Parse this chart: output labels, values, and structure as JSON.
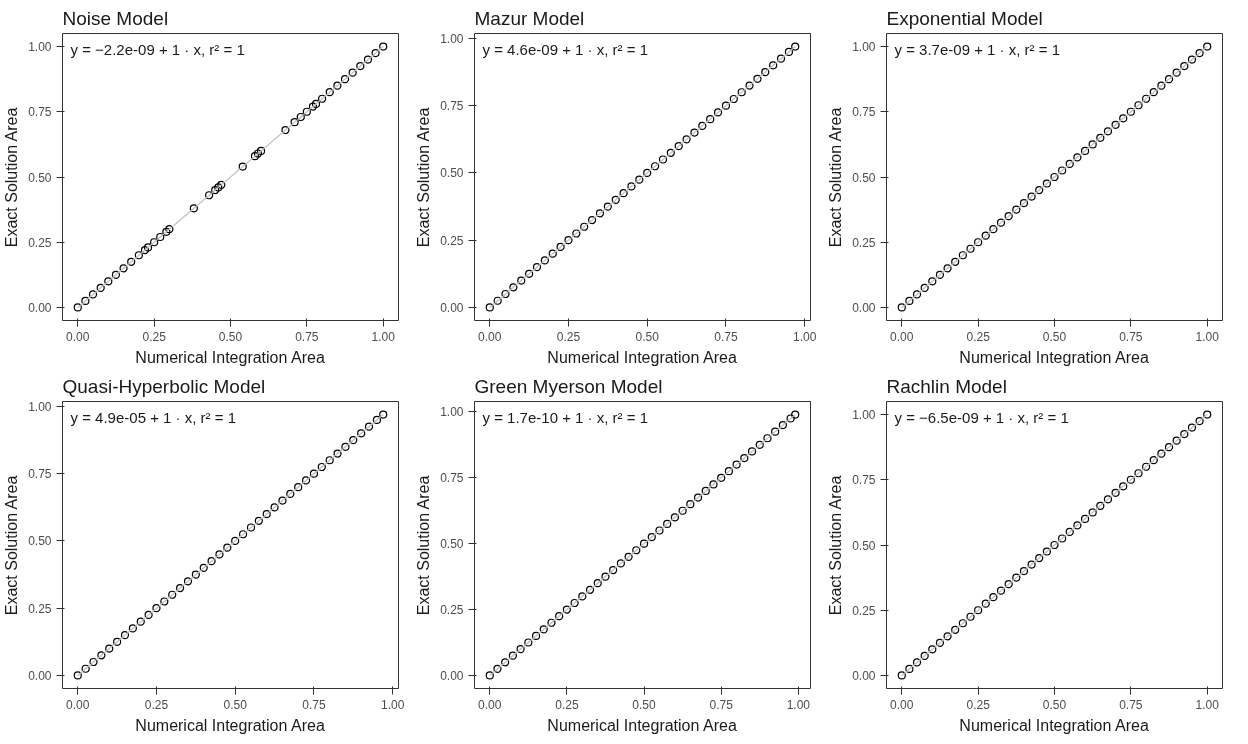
{
  "chart_data": [
    {
      "type": "scatter",
      "title": "Noise Model",
      "xlabel": "Numerical Integration Area",
      "ylabel": "Exact Solution Area",
      "annotations": [
        "y = −2.2e-09 + 1 · x,  r² = 1"
      ],
      "grid": false,
      "xlim": [
        -0.05,
        1.05
      ],
      "ylim": [
        -0.05,
        1.05
      ],
      "xticks": [
        {
          "value": 0,
          "label": "0.00"
        },
        {
          "value": 0.25,
          "label": "0.25"
        },
        {
          "value": 0.5,
          "label": "0.50"
        },
        {
          "value": 0.75,
          "label": "0.75"
        },
        {
          "value": 1,
          "label": "1.00"
        }
      ],
      "yticks": [
        {
          "value": 0,
          "label": "0.00"
        },
        {
          "value": 0.25,
          "label": "0.25"
        },
        {
          "value": 0.5,
          "label": "0.50"
        },
        {
          "value": 0.75,
          "label": "0.75"
        },
        {
          "value": 1,
          "label": "1.00"
        }
      ],
      "series": [
        {
          "marker": "circle",
          "color": "#000000",
          "x": [
            0,
            0.025,
            0.05,
            0.075,
            0.1,
            0.125,
            0.15,
            0.175,
            0.2,
            0.22,
            0.23,
            0.25,
            0.27,
            0.29,
            0.3,
            0.38,
            0.43,
            0.45,
            0.46,
            0.47,
            0.54,
            0.58,
            0.59,
            0.6,
            0.68,
            0.71,
            0.73,
            0.75,
            0.77,
            0.78,
            0.8,
            0.825,
            0.85,
            0.875,
            0.9,
            0.925,
            0.95,
            0.975,
            1.0
          ],
          "values": [
            0,
            0.025,
            0.05,
            0.075,
            0.1,
            0.125,
            0.15,
            0.175,
            0.2,
            0.22,
            0.23,
            0.25,
            0.27,
            0.29,
            0.3,
            0.38,
            0.43,
            0.45,
            0.46,
            0.47,
            0.54,
            0.58,
            0.59,
            0.6,
            0.68,
            0.71,
            0.73,
            0.75,
            0.77,
            0.78,
            0.8,
            0.825,
            0.85,
            0.875,
            0.9,
            0.925,
            0.95,
            0.975,
            1.0
          ]
        },
        {
          "type": "line",
          "marker": "none",
          "color": "#bebebe",
          "x": [
            0,
            1
          ],
          "values": [
            0,
            1
          ]
        }
      ]
    },
    {
      "type": "scatter",
      "title": "Mazur Model",
      "xlabel": "Numerical Integration Area",
      "ylabel": "Exact Solution Area",
      "annotations": [
        "y = 4.6e-09 + 1 · x,  r² = 1"
      ],
      "grid": false,
      "xlim": [
        -0.0485,
        1.0185
      ],
      "ylim": [
        -0.0485,
        1.0185
      ],
      "xticks": [
        {
          "value": 0,
          "label": "0.00"
        },
        {
          "value": 0.25,
          "label": "0.25"
        },
        {
          "value": 0.5,
          "label": "0.50"
        },
        {
          "value": 0.75,
          "label": "0.75"
        },
        {
          "value": 1,
          "label": "1.00"
        }
      ],
      "yticks": [
        {
          "value": 0,
          "label": "0.00"
        },
        {
          "value": 0.25,
          "label": "0.25"
        },
        {
          "value": 0.5,
          "label": "0.50"
        },
        {
          "value": 0.75,
          "label": "0.75"
        },
        {
          "value": 1,
          "label": "1.00"
        }
      ],
      "series": [
        {
          "marker": "circle",
          "color": "#000000",
          "x": [
            0,
            0.025,
            0.05,
            0.075,
            0.1,
            0.125,
            0.15,
            0.175,
            0.2,
            0.225,
            0.25,
            0.275,
            0.3,
            0.325,
            0.35,
            0.375,
            0.4,
            0.425,
            0.45,
            0.475,
            0.5,
            0.525,
            0.55,
            0.575,
            0.6,
            0.625,
            0.65,
            0.675,
            0.7,
            0.725,
            0.75,
            0.775,
            0.8,
            0.825,
            0.85,
            0.875,
            0.9,
            0.925,
            0.95,
            0.97
          ],
          "values": [
            0,
            0.025,
            0.05,
            0.075,
            0.1,
            0.125,
            0.15,
            0.175,
            0.2,
            0.225,
            0.25,
            0.275,
            0.3,
            0.325,
            0.35,
            0.375,
            0.4,
            0.425,
            0.45,
            0.475,
            0.5,
            0.525,
            0.55,
            0.575,
            0.6,
            0.625,
            0.65,
            0.675,
            0.7,
            0.725,
            0.75,
            0.775,
            0.8,
            0.825,
            0.85,
            0.875,
            0.9,
            0.925,
            0.95,
            0.97
          ]
        },
        {
          "type": "line",
          "marker": "none",
          "color": "#bebebe",
          "x": [
            0,
            0.97
          ],
          "values": [
            0,
            0.97
          ]
        }
      ]
    },
    {
      "type": "scatter",
      "title": "Exponential Model",
      "xlabel": "Numerical Integration Area",
      "ylabel": "Exact Solution Area",
      "annotations": [
        "y = 3.7e-09 + 1 · x,  r² = 1"
      ],
      "grid": false,
      "xlim": [
        -0.05,
        1.05
      ],
      "ylim": [
        -0.05,
        1.05
      ],
      "xticks": [
        {
          "value": 0,
          "label": "0.00"
        },
        {
          "value": 0.25,
          "label": "0.25"
        },
        {
          "value": 0.5,
          "label": "0.50"
        },
        {
          "value": 0.75,
          "label": "0.75"
        },
        {
          "value": 1,
          "label": "1.00"
        }
      ],
      "yticks": [
        {
          "value": 0,
          "label": "0.00"
        },
        {
          "value": 0.25,
          "label": "0.25"
        },
        {
          "value": 0.5,
          "label": "0.50"
        },
        {
          "value": 0.75,
          "label": "0.75"
        },
        {
          "value": 1,
          "label": "1.00"
        }
      ],
      "series": [
        {
          "marker": "circle",
          "color": "#000000",
          "x": [
            0,
            0.025,
            0.05,
            0.075,
            0.1,
            0.125,
            0.15,
            0.175,
            0.2,
            0.225,
            0.25,
            0.275,
            0.3,
            0.325,
            0.35,
            0.375,
            0.4,
            0.425,
            0.45,
            0.475,
            0.5,
            0.525,
            0.55,
            0.575,
            0.6,
            0.625,
            0.65,
            0.675,
            0.7,
            0.725,
            0.75,
            0.775,
            0.8,
            0.825,
            0.85,
            0.875,
            0.9,
            0.925,
            0.95,
            0.975,
            1.0
          ],
          "values": [
            0,
            0.025,
            0.05,
            0.075,
            0.1,
            0.125,
            0.15,
            0.175,
            0.2,
            0.225,
            0.25,
            0.275,
            0.3,
            0.325,
            0.35,
            0.375,
            0.4,
            0.425,
            0.45,
            0.475,
            0.5,
            0.525,
            0.55,
            0.575,
            0.6,
            0.625,
            0.65,
            0.675,
            0.7,
            0.725,
            0.75,
            0.775,
            0.8,
            0.825,
            0.85,
            0.875,
            0.9,
            0.925,
            0.95,
            0.975,
            1.0
          ]
        },
        {
          "type": "line",
          "marker": "none",
          "color": "#bebebe",
          "x": [
            0,
            1
          ],
          "values": [
            0,
            1
          ]
        }
      ]
    },
    {
      "type": "scatter",
      "title": "Quasi-Hyperbolic Model",
      "xlabel": "Numerical Integration Area",
      "ylabel": "Exact Solution Area",
      "annotations": [
        "y = 4.9e-05 + 1 · x,  r² = 1"
      ],
      "grid": false,
      "xlim": [
        -0.0485,
        1.0185
      ],
      "ylim": [
        -0.0485,
        1.0185
      ],
      "xticks": [
        {
          "value": 0,
          "label": "0.00"
        },
        {
          "value": 0.25,
          "label": "0.25"
        },
        {
          "value": 0.5,
          "label": "0.50"
        },
        {
          "value": 0.75,
          "label": "0.75"
        },
        {
          "value": 1,
          "label": "1.00"
        }
      ],
      "yticks": [
        {
          "value": 0,
          "label": "0.00"
        },
        {
          "value": 0.25,
          "label": "0.25"
        },
        {
          "value": 0.5,
          "label": "0.50"
        },
        {
          "value": 0.75,
          "label": "0.75"
        },
        {
          "value": 1,
          "label": "1.00"
        }
      ],
      "series": [
        {
          "marker": "circle",
          "color": "#000000",
          "x": [
            0,
            0.025,
            0.05,
            0.075,
            0.1,
            0.125,
            0.15,
            0.175,
            0.2,
            0.225,
            0.25,
            0.275,
            0.3,
            0.325,
            0.35,
            0.375,
            0.4,
            0.425,
            0.45,
            0.475,
            0.5,
            0.525,
            0.55,
            0.575,
            0.6,
            0.625,
            0.65,
            0.675,
            0.7,
            0.725,
            0.75,
            0.775,
            0.8,
            0.825,
            0.85,
            0.875,
            0.9,
            0.925,
            0.95,
            0.97
          ],
          "values": [
            0,
            0.025,
            0.05,
            0.075,
            0.1,
            0.125,
            0.15,
            0.175,
            0.2,
            0.225,
            0.25,
            0.275,
            0.3,
            0.325,
            0.35,
            0.375,
            0.4,
            0.425,
            0.45,
            0.475,
            0.5,
            0.525,
            0.55,
            0.575,
            0.6,
            0.625,
            0.65,
            0.675,
            0.7,
            0.725,
            0.75,
            0.775,
            0.8,
            0.825,
            0.85,
            0.875,
            0.9,
            0.925,
            0.95,
            0.97
          ]
        },
        {
          "type": "line",
          "marker": "none",
          "color": "#bebebe",
          "x": [
            0,
            0.97
          ],
          "values": [
            0,
            0.97
          ]
        }
      ]
    },
    {
      "type": "scatter",
      "title": "Green Myerson Model",
      "xlabel": "Numerical Integration Area",
      "ylabel": "Exact Solution Area",
      "annotations": [
        "y = 1.7e-10 + 1 · x,  r² = 1"
      ],
      "grid": false,
      "xlim": [
        -0.0495,
        1.0395
      ],
      "ylim": [
        -0.0495,
        1.0395
      ],
      "xticks": [
        {
          "value": 0,
          "label": "0.00"
        },
        {
          "value": 0.25,
          "label": "0.25"
        },
        {
          "value": 0.5,
          "label": "0.50"
        },
        {
          "value": 0.75,
          "label": "0.75"
        },
        {
          "value": 1,
          "label": "1.00"
        }
      ],
      "yticks": [
        {
          "value": 0,
          "label": "0.00"
        },
        {
          "value": 0.25,
          "label": "0.25"
        },
        {
          "value": 0.5,
          "label": "0.50"
        },
        {
          "value": 0.75,
          "label": "0.75"
        },
        {
          "value": 1,
          "label": "1.00"
        }
      ],
      "series": [
        {
          "marker": "circle",
          "color": "#000000",
          "x": [
            0,
            0.025,
            0.05,
            0.075,
            0.1,
            0.125,
            0.15,
            0.175,
            0.2,
            0.225,
            0.25,
            0.275,
            0.3,
            0.325,
            0.35,
            0.375,
            0.4,
            0.425,
            0.45,
            0.475,
            0.5,
            0.525,
            0.55,
            0.575,
            0.6,
            0.625,
            0.65,
            0.675,
            0.7,
            0.725,
            0.75,
            0.775,
            0.8,
            0.825,
            0.85,
            0.875,
            0.9,
            0.925,
            0.95,
            0.975,
            0.99
          ],
          "values": [
            0,
            0.025,
            0.05,
            0.075,
            0.1,
            0.125,
            0.15,
            0.175,
            0.2,
            0.225,
            0.25,
            0.275,
            0.3,
            0.325,
            0.35,
            0.375,
            0.4,
            0.425,
            0.45,
            0.475,
            0.5,
            0.525,
            0.55,
            0.575,
            0.6,
            0.625,
            0.65,
            0.675,
            0.7,
            0.725,
            0.75,
            0.775,
            0.8,
            0.825,
            0.85,
            0.875,
            0.9,
            0.925,
            0.95,
            0.975,
            0.99
          ]
        },
        {
          "type": "line",
          "marker": "none",
          "color": "#bebebe",
          "x": [
            0,
            0.99
          ],
          "values": [
            0,
            0.99
          ]
        }
      ]
    },
    {
      "type": "scatter",
      "title": "Rachlin Model",
      "xlabel": "Numerical Integration Area",
      "ylabel": "Exact Solution Area",
      "annotations": [
        "y = −6.5e-09 + 1 · x,  r² = 1"
      ],
      "grid": false,
      "xlim": [
        -0.05,
        1.05
      ],
      "ylim": [
        -0.05,
        1.05
      ],
      "xticks": [
        {
          "value": 0,
          "label": "0.00"
        },
        {
          "value": 0.25,
          "label": "0.25"
        },
        {
          "value": 0.5,
          "label": "0.50"
        },
        {
          "value": 0.75,
          "label": "0.75"
        },
        {
          "value": 1,
          "label": "1.00"
        }
      ],
      "yticks": [
        {
          "value": 0,
          "label": "0.00"
        },
        {
          "value": 0.25,
          "label": "0.25"
        },
        {
          "value": 0.5,
          "label": "0.50"
        },
        {
          "value": 0.75,
          "label": "0.75"
        },
        {
          "value": 1,
          "label": "1.00"
        }
      ],
      "series": [
        {
          "marker": "circle",
          "color": "#000000",
          "x": [
            0,
            0.025,
            0.05,
            0.075,
            0.1,
            0.125,
            0.15,
            0.175,
            0.2,
            0.225,
            0.25,
            0.275,
            0.3,
            0.325,
            0.35,
            0.375,
            0.4,
            0.425,
            0.45,
            0.475,
            0.5,
            0.525,
            0.55,
            0.575,
            0.6,
            0.625,
            0.65,
            0.675,
            0.7,
            0.725,
            0.75,
            0.775,
            0.8,
            0.825,
            0.85,
            0.875,
            0.9,
            0.925,
            0.95,
            0.975,
            1.0
          ],
          "values": [
            0,
            0.025,
            0.05,
            0.075,
            0.1,
            0.125,
            0.15,
            0.175,
            0.2,
            0.225,
            0.25,
            0.275,
            0.3,
            0.325,
            0.35,
            0.375,
            0.4,
            0.425,
            0.45,
            0.475,
            0.5,
            0.525,
            0.55,
            0.575,
            0.6,
            0.625,
            0.65,
            0.675,
            0.7,
            0.725,
            0.75,
            0.775,
            0.8,
            0.825,
            0.85,
            0.875,
            0.9,
            0.925,
            0.95,
            0.975,
            1.0
          ]
        },
        {
          "type": "line",
          "marker": "none",
          "color": "#bebebe",
          "x": [
            0,
            1
          ],
          "values": [
            0,
            1
          ]
        }
      ]
    }
  ]
}
